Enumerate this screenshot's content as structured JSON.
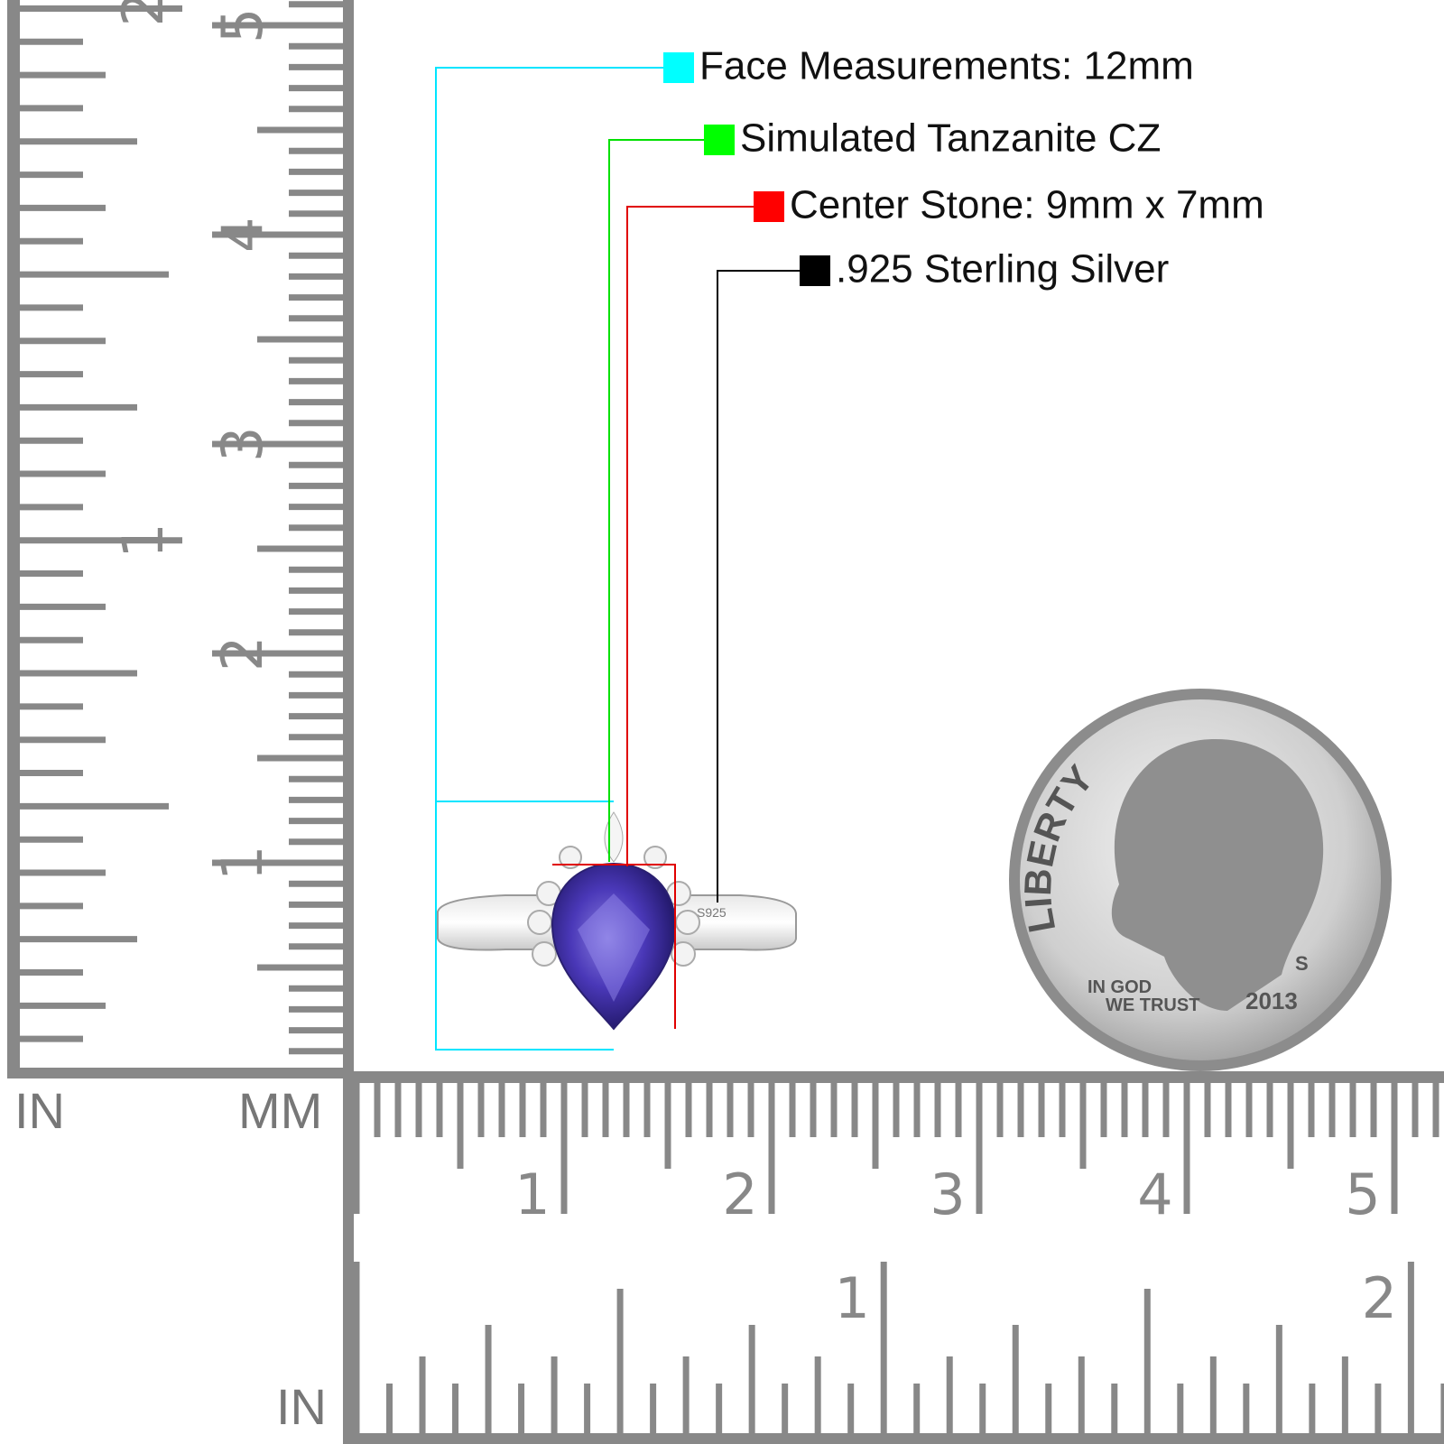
{
  "labels": [
    {
      "text": "Face Measurements: 12mm",
      "color": "#00ffff"
    },
    {
      "text": "Simulated Tanzanite CZ",
      "color": "#00ff00"
    },
    {
      "text": "Center Stone: 9mm x 7mm",
      "color": "#ff0000"
    },
    {
      "text": ".925 Sterling Silver",
      "color": "#000000"
    }
  ],
  "ruler": {
    "corner_in": "IN",
    "corner_mm": "MM",
    "bottom_in": "IN",
    "cm_numbers": [
      "1",
      "2",
      "3",
      "4",
      "5"
    ],
    "in_numbers": [
      "1",
      "2"
    ]
  },
  "coin": {
    "legend": "LIBERTY",
    "motto_1": "IN GOD",
    "motto_2": "WE TRUST",
    "year": "2013",
    "mint_mark": "S"
  },
  "ring": {
    "stamp": "S925"
  }
}
